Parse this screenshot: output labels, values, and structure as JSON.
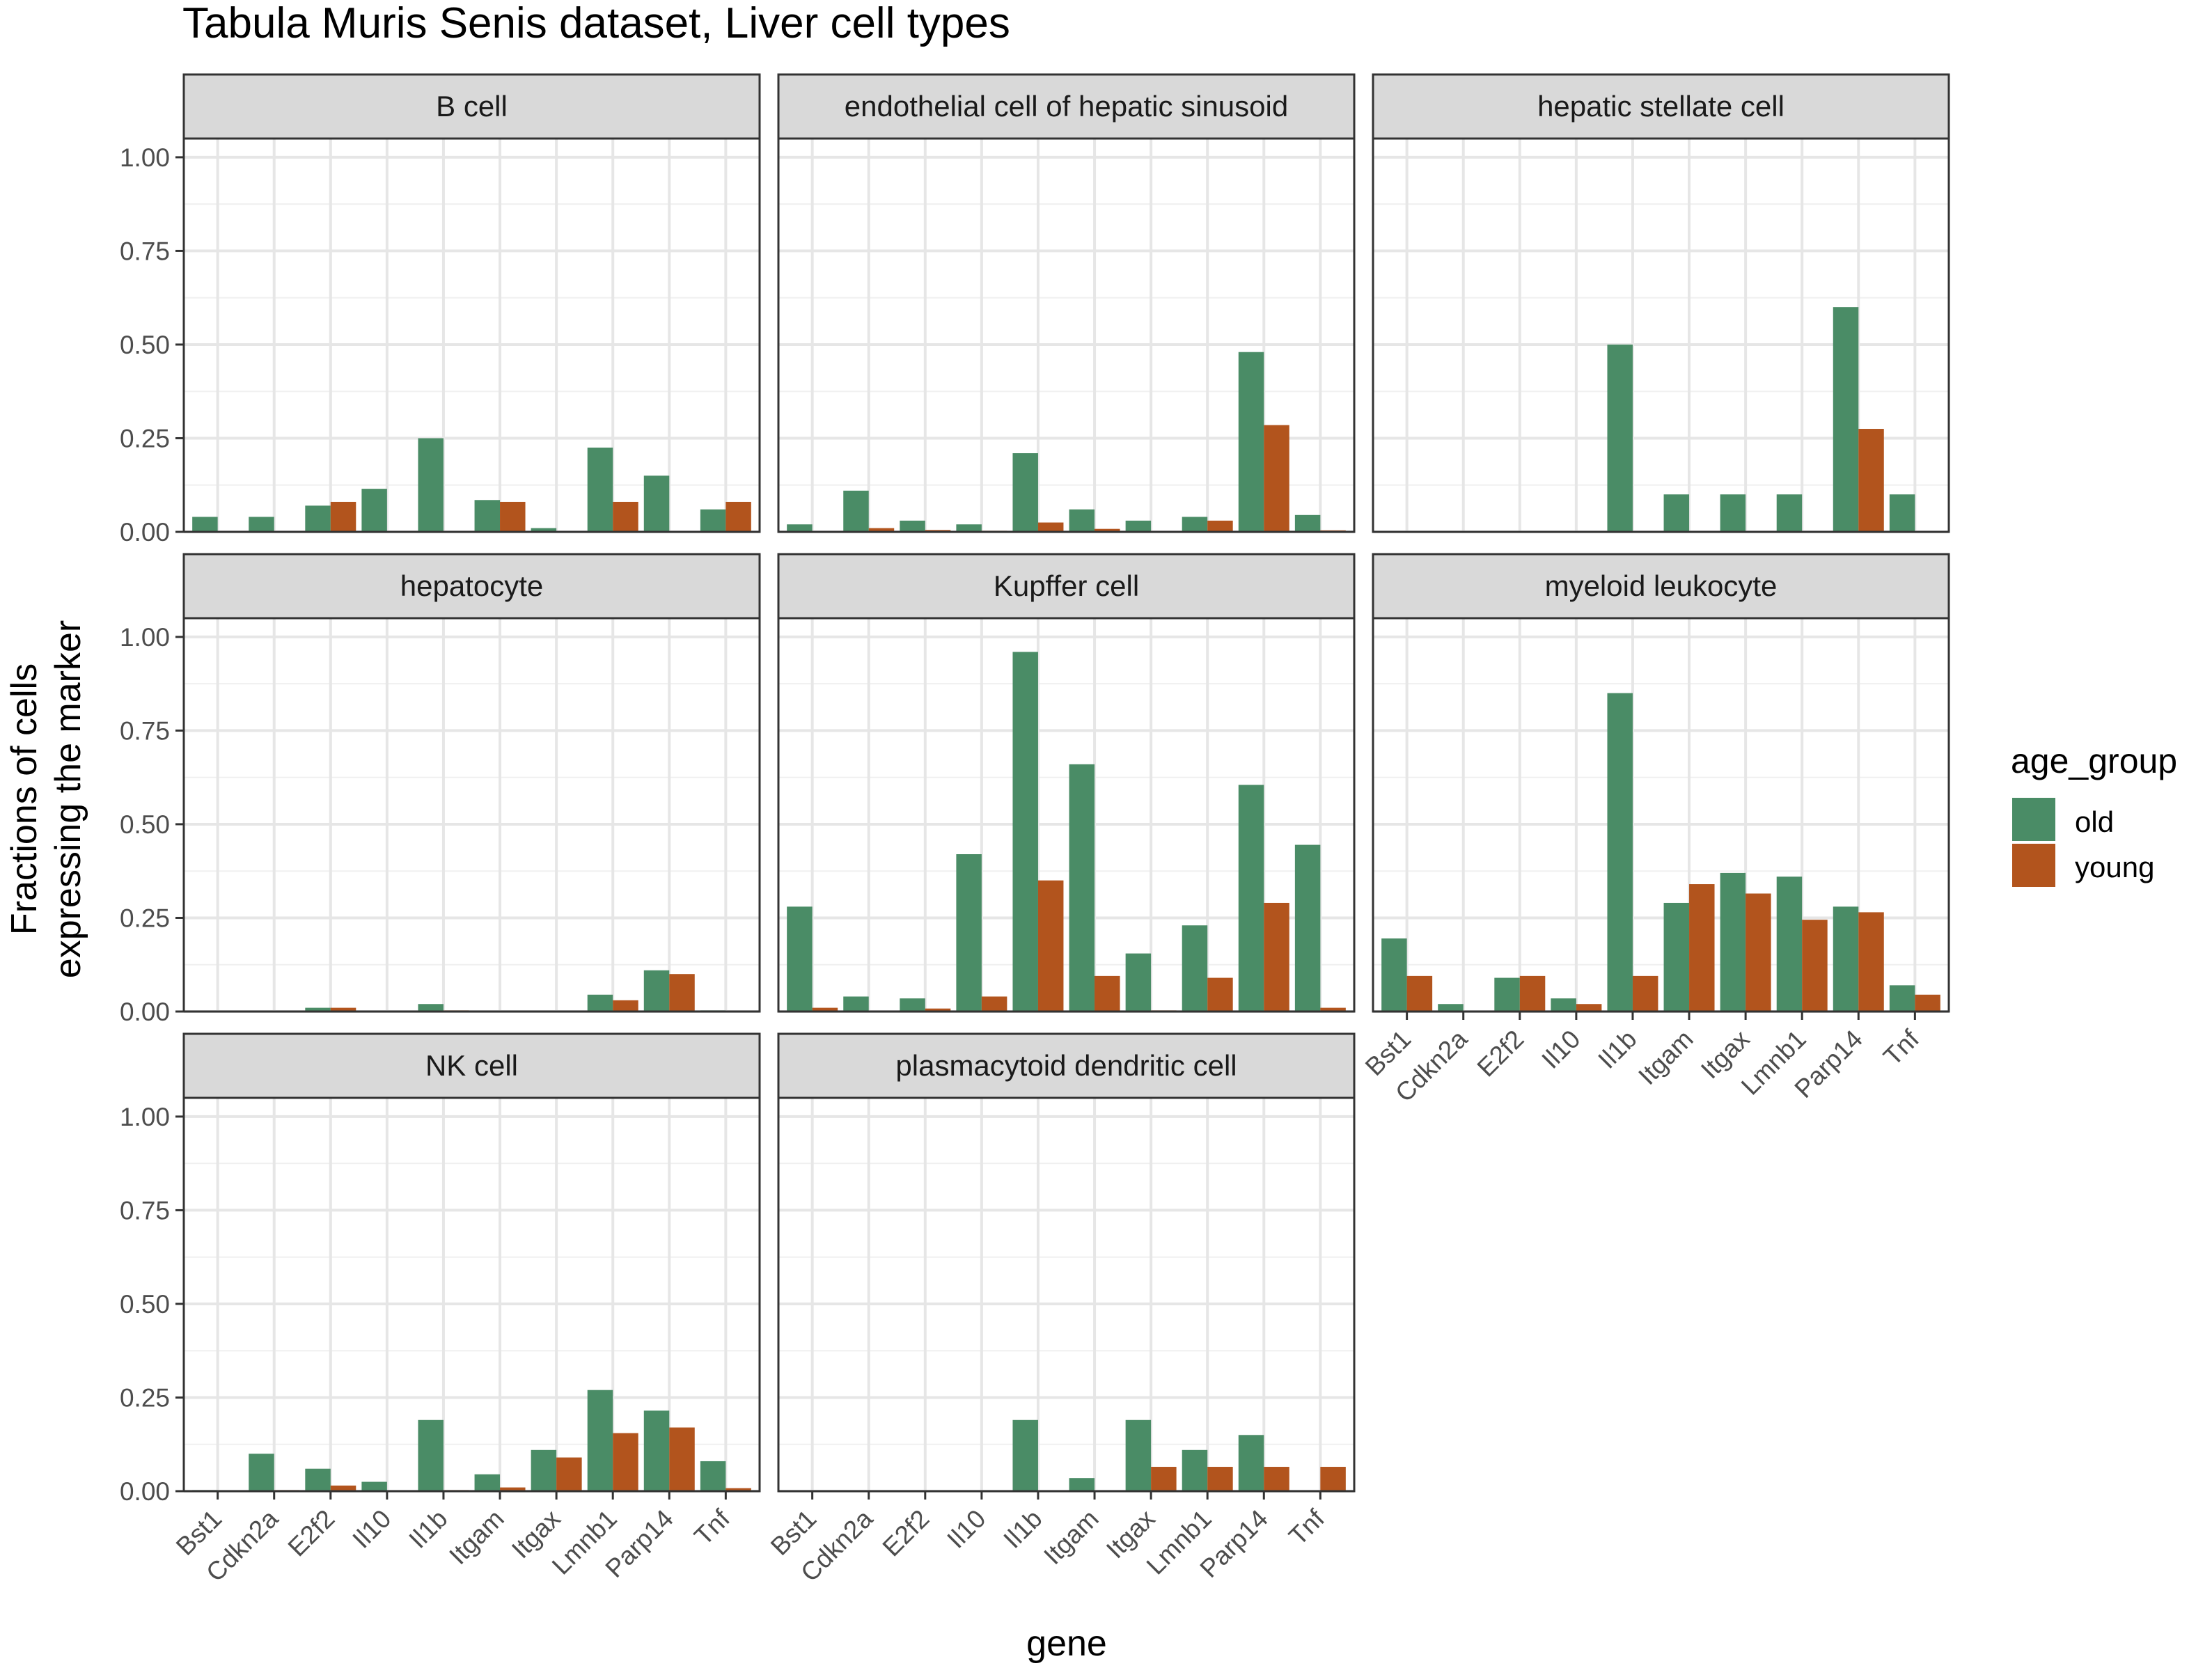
{
  "chart_data": {
    "type": "bar",
    "title": "Tabula Muris Senis dataset, Liver cell types",
    "xlabel": "gene",
    "ylabel_lines": [
      "Fractions of cells",
      "expressing the marker"
    ],
    "categories": [
      "Bst1",
      "Cdkn2a",
      "E2f2",
      "Il10",
      "Il1b",
      "Itgam",
      "Itgax",
      "Lmnb1",
      "Parp14",
      "Tnf"
    ],
    "y_ticks": [
      "0.00",
      "0.25",
      "0.50",
      "0.75",
      "1.00"
    ],
    "ylim": [
      0,
      1.05
    ],
    "grid": true,
    "legend": {
      "title": "age_group",
      "position": "right",
      "entries": [
        {
          "name": "old",
          "color": "#4a8c66"
        },
        {
          "name": "young",
          "color": "#b2541d"
        }
      ]
    },
    "facets": [
      {
        "title": "B cell",
        "series": [
          {
            "name": "old",
            "values": [
              0.04,
              0.04,
              0.07,
              0.115,
              0.25,
              0.085,
              0.01,
              0.225,
              0.15,
              0.06
            ]
          },
          {
            "name": "young",
            "values": [
              0,
              0,
              0.08,
              0,
              0,
              0.08,
              0,
              0.08,
              0,
              0.08
            ]
          }
        ]
      },
      {
        "title": "endothelial cell of hepatic sinusoid",
        "series": [
          {
            "name": "old",
            "values": [
              0.02,
              0.11,
              0.03,
              0.02,
              0.21,
              0.06,
              0.03,
              0.04,
              0.48,
              0.045
            ]
          },
          {
            "name": "young",
            "values": [
              0,
              0.01,
              0.005,
              0.003,
              0.025,
              0.008,
              0,
              0.03,
              0.285,
              0.004
            ]
          }
        ]
      },
      {
        "title": "hepatic stellate cell",
        "series": [
          {
            "name": "old",
            "values": [
              0,
              0,
              0,
              0,
              0.5,
              0.1,
              0.1,
              0.1,
              0.6,
              0.1
            ]
          },
          {
            "name": "young",
            "values": [
              0,
              0,
              0,
              0,
              0,
              0,
              0,
              0,
              0.275,
              0
            ]
          }
        ]
      },
      {
        "title": "hepatocyte",
        "series": [
          {
            "name": "old",
            "values": [
              0,
              0.002,
              0.01,
              0,
              0.02,
              0,
              0,
              0.045,
              0.11,
              0.003
            ]
          },
          {
            "name": "young",
            "values": [
              0,
              0,
              0.01,
              0,
              0.003,
              0,
              0,
              0.03,
              0.1,
              0
            ]
          }
        ]
      },
      {
        "title": "Kupffer cell",
        "series": [
          {
            "name": "old",
            "values": [
              0.28,
              0.04,
              0.035,
              0.42,
              0.96,
              0.66,
              0.155,
              0.23,
              0.605,
              0.445
            ]
          },
          {
            "name": "young",
            "values": [
              0.01,
              0.002,
              0.008,
              0.04,
              0.35,
              0.095,
              0.003,
              0.09,
              0.29,
              0.01
            ]
          }
        ]
      },
      {
        "title": "myeloid leukocyte",
        "series": [
          {
            "name": "old",
            "values": [
              0.195,
              0.02,
              0.09,
              0.035,
              0.85,
              0.29,
              0.37,
              0.36,
              0.28,
              0.07
            ]
          },
          {
            "name": "young",
            "values": [
              0.095,
              0,
              0.095,
              0.02,
              0.095,
              0.34,
              0.315,
              0.245,
              0.265,
              0.045
            ]
          }
        ]
      },
      {
        "title": "NK cell",
        "series": [
          {
            "name": "old",
            "values": [
              0.003,
              0.1,
              0.06,
              0.025,
              0.19,
              0.045,
              0.11,
              0.27,
              0.215,
              0.08
            ]
          },
          {
            "name": "young",
            "values": [
              0,
              0.003,
              0.015,
              0,
              0.003,
              0.01,
              0.09,
              0.155,
              0.17,
              0.008
            ]
          }
        ]
      },
      {
        "title": "plasmacytoid dendritic cell",
        "series": [
          {
            "name": "old",
            "values": [
              0,
              0,
              0,
              0,
              0.19,
              0.035,
              0.19,
              0.11,
              0.15,
              0
            ]
          },
          {
            "name": "young",
            "values": [
              0,
              0,
              0,
              0,
              0,
              0,
              0.065,
              0.065,
              0.065,
              0.065
            ]
          }
        ]
      }
    ]
  }
}
